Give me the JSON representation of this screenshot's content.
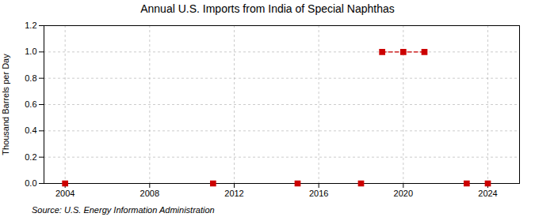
{
  "chart_data": {
    "type": "scatter",
    "title": "Annual U.S. Imports from India of Special Naphthas",
    "ylabel": "Thousand Barrels per Day",
    "annotations": [
      "Source: U.S. Energy Information Administration"
    ],
    "xlim": [
      2003,
      2025.5
    ],
    "xticks": [
      2004,
      2008,
      2012,
      2016,
      2020,
      2024
    ],
    "ylim": [
      0.0,
      1.2
    ],
    "yticks": [
      {
        "value": 0.0,
        "label": "0.0"
      },
      {
        "value": 0.2,
        "label": "0.2"
      },
      {
        "value": 0.4,
        "label": "0.4"
      },
      {
        "value": 0.6,
        "label": "0.6"
      },
      {
        "value": 0.8,
        "label": "0.8"
      },
      {
        "value": 1.0,
        "label": "1.0"
      },
      {
        "value": 1.2,
        "label": "1.2"
      }
    ],
    "grid": true,
    "series": [
      {
        "type": "scatter",
        "color": "#cc0000",
        "marker": "square",
        "x": [
          2004,
          2011,
          2015,
          2018,
          2019,
          2020,
          2021,
          2023,
          2024
        ],
        "values": [
          0.0,
          0.0,
          0.0,
          0.0,
          1.0,
          1.0,
          1.0,
          0.0,
          0.0
        ]
      },
      {
        "type": "line",
        "color": "#cc0000",
        "line_style": "dashed",
        "x": [
          2019,
          2020,
          2021
        ],
        "values": [
          1.0,
          1.0,
          1.0
        ]
      }
    ]
  }
}
